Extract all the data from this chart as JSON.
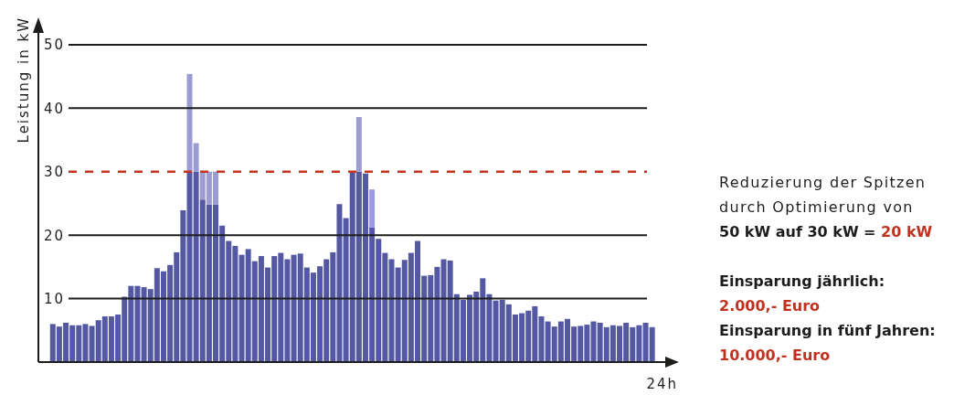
{
  "chart_data": {
    "type": "bar",
    "ylabel": "Leistung in kW",
    "xlabel": "24h",
    "categories": [
      null,
      null,
      null,
      null,
      null,
      null,
      null,
      null,
      null,
      null,
      null,
      null,
      null,
      null,
      null,
      null,
      null,
      null,
      null,
      null,
      null,
      null,
      null,
      null,
      null,
      null,
      null,
      null,
      null,
      null,
      null,
      null,
      null,
      null,
      null,
      null,
      null,
      null,
      null,
      null,
      null,
      null,
      null,
      null,
      null,
      null,
      null,
      null,
      null,
      null,
      null,
      null,
      null,
      null,
      null,
      null,
      null,
      null,
      null,
      null,
      null,
      null,
      null,
      null,
      null,
      null,
      null,
      null,
      null,
      null,
      null,
      null,
      null,
      null,
      null,
      null,
      null,
      null,
      null,
      null,
      null,
      null,
      null,
      null,
      null,
      null,
      null,
      null,
      null,
      null,
      null,
      null,
      null
    ],
    "series": [
      {
        "color": "#5458a3",
        "values": [
          6,
          5.6,
          6.2,
          5.8,
          5.8,
          6,
          5.7,
          6.6,
          7.2,
          7.2,
          7.5,
          10.3,
          12,
          12,
          11.8,
          11.5,
          14.8,
          14.3,
          15.3,
          17.3,
          23.9,
          30,
          30,
          25.6,
          24.8,
          24.8,
          21.5,
          19.1,
          18.3,
          16.9,
          17.8,
          15.9,
          16.7,
          14.9,
          16.7,
          17.2,
          16.2,
          16.9,
          17.1,
          14.9,
          14.1,
          15.1,
          16.2,
          17.3,
          24.9,
          22.7,
          30,
          30,
          29.7,
          21.2,
          19.4,
          17.2,
          16.2,
          14.9,
          16.1,
          17.2,
          19.1,
          13.6,
          13.7,
          15,
          16.2,
          16,
          10.7,
          9.8,
          10.6,
          11.1,
          13.2,
          10.7,
          9.7,
          9.8,
          9.1,
          7.5,
          7.7,
          8.1,
          8.8,
          7.2,
          6.4,
          5.6,
          6.4,
          6.8,
          5.6,
          5.7,
          5.9,
          6.4,
          6.2,
          5.5,
          5.8,
          5.7,
          6.2,
          5.5,
          5.8,
          6.2,
          5.5
        ]
      },
      {
        "color": "#9c9cd3",
        "values": [
          null,
          null,
          null,
          null,
          null,
          null,
          null,
          null,
          null,
          null,
          null,
          null,
          null,
          null,
          null,
          null,
          null,
          null,
          null,
          null,
          null,
          15.4,
          4.5,
          4.4,
          5.2,
          5.2,
          null,
          null,
          null,
          null,
          null,
          null,
          null,
          null,
          null,
          null,
          null,
          null,
          null,
          null,
          null,
          null,
          null,
          null,
          null,
          null,
          null,
          8.6,
          null,
          6,
          null,
          null,
          null,
          null,
          null,
          null,
          null,
          null,
          null,
          null,
          null,
          null,
          null,
          null,
          null,
          null,
          null,
          null,
          null,
          null,
          null,
          null,
          null,
          null,
          null,
          null,
          null,
          null,
          null,
          null,
          null,
          null,
          null,
          null,
          null,
          null,
          null,
          null,
          null,
          null,
          null,
          null,
          null
        ]
      }
    ],
    "stacked": true,
    "ylim": [
      0,
      52
    ],
    "yticks": [
      10,
      20,
      30,
      40,
      50
    ],
    "grid": "y",
    "tick_labels": "y",
    "ref_lines": [
      {
        "axis": "y",
        "value": 30,
        "color": "#c8321e",
        "line_style": "dashed"
      }
    ],
    "annotations": [
      "Reduzierung der Spitzen durch Optimierung von",
      "50 kW auf 30 kW =",
      "20 kW",
      "Einsparung jährlich:",
      "2.000,- Euro",
      "Einsparung in fünf Jahren:",
      "10.000,- Euro"
    ]
  }
}
